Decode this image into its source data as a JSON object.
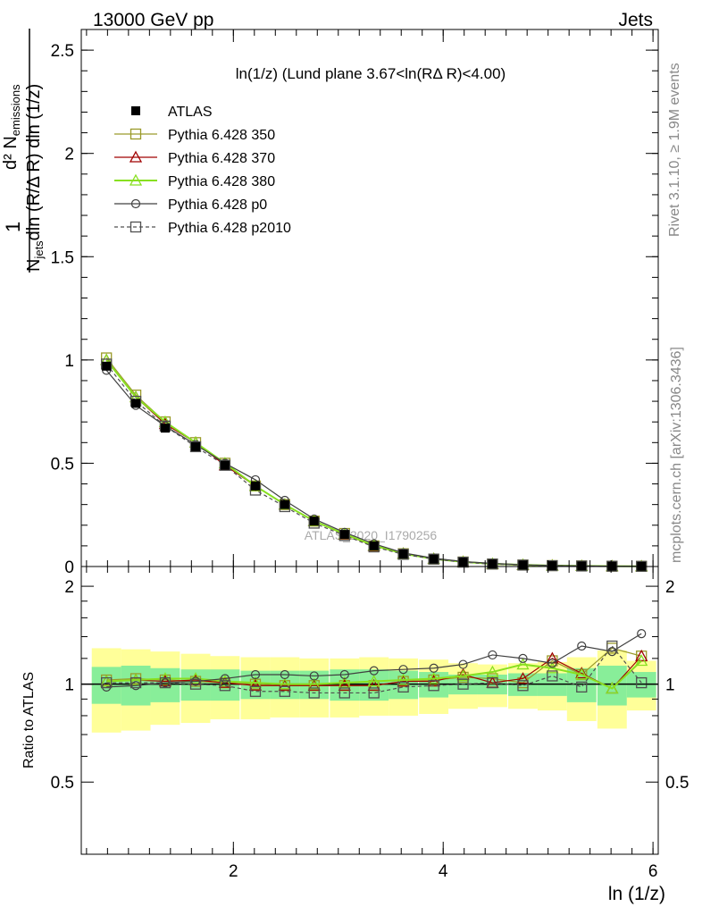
{
  "header": {
    "left": "13000 GeV pp",
    "right": "Jets"
  },
  "side_labels": {
    "rivet": "Rivet 3.1.10, ≥ 1.9M events",
    "mcplots": "mcplots.cern.ch [arXiv:1306.3436]"
  },
  "watermark": "ATLAS_2020_I1790256",
  "colors": {
    "atlas": "#000000",
    "p350": "#9a9a2a",
    "p370": "#a00000",
    "p380": "#88e020",
    "p0": "#404040",
    "p2010": "#505050",
    "band_outer": "#ffff99",
    "band_inner": "#88ee99"
  },
  "chart_data": [
    {
      "type": "line",
      "title": "ln(1/z) (Lund plane 3.67<ln(RΔ R)<4.00)",
      "xlabel": "ln (1/z)",
      "ylabel": "1/N_jets d²N_emissions / dln(R/ΔR) dln(1/z)",
      "xlim": [
        0.55,
        6.05
      ],
      "ylim": [
        0,
        2.6
      ],
      "yticks": [
        0,
        0.5,
        1,
        1.5,
        2,
        2.5
      ],
      "ytick_labels": [
        "0",
        "0.5",
        "1",
        "1.5",
        "2",
        "2.5"
      ],
      "legend_position": "top-left",
      "x": [
        0.79,
        1.07,
        1.35,
        1.64,
        1.92,
        2.21,
        2.49,
        2.77,
        3.06,
        3.34,
        3.62,
        3.91,
        4.19,
        4.47,
        4.76,
        5.04,
        5.32,
        5.61,
        5.89
      ],
      "series": [
        {
          "name": "ATLAS",
          "marker": "filled-square",
          "values": [
            0.97,
            0.79,
            0.67,
            0.58,
            0.49,
            0.39,
            0.3,
            0.22,
            0.155,
            0.1,
            0.06,
            0.036,
            0.021,
            0.012,
            0.007,
            0.004,
            0.0025,
            0.0015,
            0.0009
          ]
        },
        {
          "name": "Pythia 6.428 350",
          "marker": "open-square",
          "values": [
            1.01,
            0.83,
            0.7,
            0.6,
            0.5,
            0.39,
            0.3,
            0.22,
            0.16,
            0.1,
            0.062,
            0.036,
            0.022,
            0.012,
            0.007,
            0.0045,
            0.0027,
            0.0016,
            0.001
          ]
        },
        {
          "name": "Pythia 6.428 370",
          "marker": "open-triangle",
          "values": [
            1.0,
            0.82,
            0.69,
            0.6,
            0.49,
            0.39,
            0.3,
            0.22,
            0.155,
            0.1,
            0.062,
            0.037,
            0.022,
            0.012,
            0.007,
            0.0048,
            0.0027,
            0.0015,
            0.001
          ]
        },
        {
          "name": "Pythia 6.428 380",
          "marker": "open-triangle",
          "values": [
            1.0,
            0.82,
            0.7,
            0.6,
            0.5,
            0.39,
            0.3,
            0.22,
            0.157,
            0.102,
            0.062,
            0.037,
            0.022,
            0.013,
            0.008,
            0.0045,
            0.0027,
            0.0015,
            0.001
          ]
        },
        {
          "name": "Pythia 6.428 p0",
          "marker": "open-circle",
          "values": [
            0.95,
            0.78,
            0.68,
            0.59,
            0.5,
            0.42,
            0.32,
            0.23,
            0.165,
            0.11,
            0.066,
            0.04,
            0.024,
            0.015,
            0.008,
            0.005,
            0.003,
            0.002,
            0.0012
          ]
        },
        {
          "name": "Pythia 6.428 p2010",
          "marker": "open-square-dashed",
          "values": [
            0.98,
            0.8,
            0.68,
            0.58,
            0.49,
            0.37,
            0.29,
            0.21,
            0.15,
            0.095,
            0.059,
            0.036,
            0.021,
            0.012,
            0.007,
            0.004,
            0.0025,
            0.0015,
            0.0009
          ]
        }
      ]
    },
    {
      "type": "line",
      "ylabel": "Ratio to ATLAS",
      "xlabel": "ln (1/z)",
      "xlim": [
        0.55,
        6.05
      ],
      "ylim": [
        0.3,
        2.3
      ],
      "xticks": [
        2,
        4,
        6
      ],
      "xtick_labels": [
        "2",
        "4",
        "6"
      ],
      "yticks": [
        0.5,
        1,
        2
      ],
      "ytick_labels": [
        "0.5",
        "1",
        "2"
      ],
      "x": [
        0.79,
        1.07,
        1.35,
        1.64,
        1.92,
        2.21,
        2.49,
        2.77,
        3.06,
        3.34,
        3.62,
        3.91,
        4.19,
        4.47,
        4.76,
        5.04,
        5.32,
        5.61,
        5.89
      ],
      "bands": {
        "outer_low": [
          0.71,
          0.72,
          0.75,
          0.76,
          0.78,
          0.78,
          0.79,
          0.79,
          0.79,
          0.8,
          0.8,
          0.81,
          0.84,
          0.85,
          0.84,
          0.83,
          0.77,
          0.73,
          0.83
        ],
        "outer_high": [
          1.29,
          1.28,
          1.26,
          1.24,
          1.22,
          1.21,
          1.21,
          1.2,
          1.2,
          1.21,
          1.2,
          1.19,
          1.16,
          1.15,
          1.16,
          1.17,
          1.21,
          1.27,
          1.18
        ],
        "inner_low": [
          0.87,
          0.86,
          0.88,
          0.89,
          0.89,
          0.9,
          0.9,
          0.9,
          0.89,
          0.89,
          0.9,
          0.91,
          0.93,
          0.93,
          0.92,
          0.92,
          0.88,
          0.86,
          0.91
        ],
        "inner_high": [
          1.13,
          1.14,
          1.12,
          1.11,
          1.11,
          1.1,
          1.1,
          1.1,
          1.11,
          1.11,
          1.1,
          1.09,
          1.07,
          1.07,
          1.08,
          1.08,
          1.12,
          1.14,
          1.09
        ]
      },
      "series": [
        {
          "name": "Pythia 6.428 350",
          "values": [
            1.03,
            1.04,
            1.03,
            1.02,
            1.01,
            1.0,
            0.99,
            0.99,
            0.99,
            0.99,
            1.02,
            1.03,
            1.05,
            1.04,
            1.01,
            1.18,
            1.07,
            1.29,
            1.22
          ]
        },
        {
          "name": "Pythia 6.428 370",
          "values": [
            1.02,
            1.03,
            1.02,
            1.03,
            1.01,
            0.99,
            0.99,
            0.99,
            0.99,
            0.99,
            1.02,
            1.02,
            1.07,
            1.01,
            1.04,
            1.2,
            1.08,
            0.97,
            1.22
          ]
        },
        {
          "name": "Pythia 6.428 380",
          "values": [
            1.02,
            1.03,
            1.04,
            1.04,
            1.02,
            1.01,
            1.0,
            1.0,
            1.01,
            1.02,
            1.03,
            1.04,
            1.06,
            1.09,
            1.15,
            1.12,
            1.07,
            0.97,
            1.18
          ]
        },
        {
          "name": "Pythia 6.428 p0",
          "values": [
            0.98,
            0.99,
            1.01,
            1.02,
            1.04,
            1.07,
            1.07,
            1.06,
            1.07,
            1.1,
            1.11,
            1.12,
            1.15,
            1.23,
            1.2,
            1.16,
            1.31,
            1.26,
            1.43
          ]
        },
        {
          "name": "Pythia 6.428 p2010",
          "values": [
            1.01,
            1.01,
            1.01,
            1.0,
            0.99,
            0.95,
            0.95,
            0.94,
            0.94,
            0.94,
            0.98,
            0.99,
            1.0,
            1.01,
            0.99,
            1.06,
            0.98,
            1.31,
            1.01
          ]
        }
      ]
    }
  ]
}
